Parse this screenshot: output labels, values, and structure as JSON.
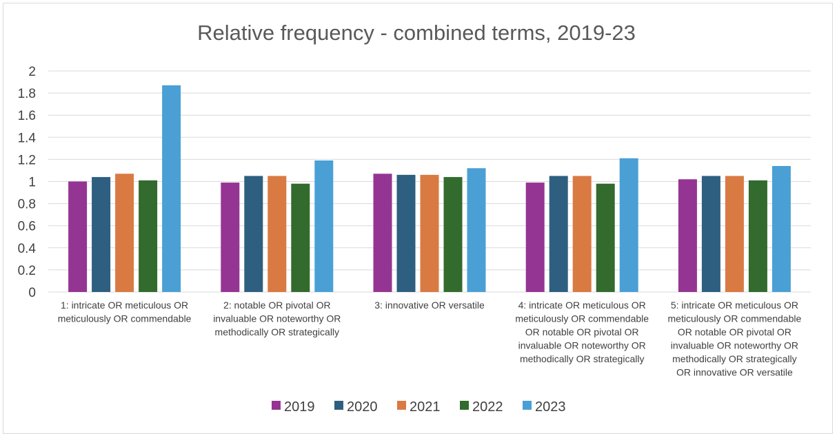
{
  "chart_data": {
    "type": "bar",
    "title": "Relative frequency - combined terms, 2019-23",
    "xlabel": "",
    "ylabel": "",
    "ylim": [
      0,
      2
    ],
    "yticks": [
      "0",
      "0.2",
      "0.4",
      "0.6",
      "0.8",
      "1",
      "1.2",
      "1.4",
      "1.6",
      "1.8",
      "2"
    ],
    "grid": true,
    "legend_position": "bottom",
    "categories": [
      [
        "1: intricate OR meticulous OR",
        "meticulously OR commendable"
      ],
      [
        "2: notable OR pivotal OR",
        "invaluable OR noteworthy OR",
        "methodically OR strategically"
      ],
      [
        "3: innovative OR versatile"
      ],
      [
        "4: intricate OR meticulous OR",
        "meticulously OR commendable",
        "OR notable OR pivotal OR",
        "invaluable OR noteworthy OR",
        "methodically OR strategically"
      ],
      [
        "5: intricate OR meticulous OR",
        "meticulously OR commendable",
        "OR notable OR pivotal OR",
        "invaluable OR noteworthy OR",
        "methodically OR strategically",
        "OR innovative OR versatile"
      ]
    ],
    "series": [
      {
        "name": "2019",
        "color": "#953593",
        "values": [
          1.0,
          0.99,
          1.07,
          0.99,
          1.02
        ]
      },
      {
        "name": "2020",
        "color": "#2e5f80",
        "values": [
          1.04,
          1.05,
          1.06,
          1.05,
          1.05
        ]
      },
      {
        "name": "2021",
        "color": "#d97a43",
        "values": [
          1.07,
          1.05,
          1.06,
          1.05,
          1.05
        ]
      },
      {
        "name": "2022",
        "color": "#336b2e",
        "values": [
          1.01,
          0.98,
          1.04,
          0.98,
          1.01
        ]
      },
      {
        "name": "2023",
        "color": "#4aa0d4",
        "values": [
          1.87,
          1.19,
          1.12,
          1.21,
          1.14
        ]
      }
    ]
  }
}
